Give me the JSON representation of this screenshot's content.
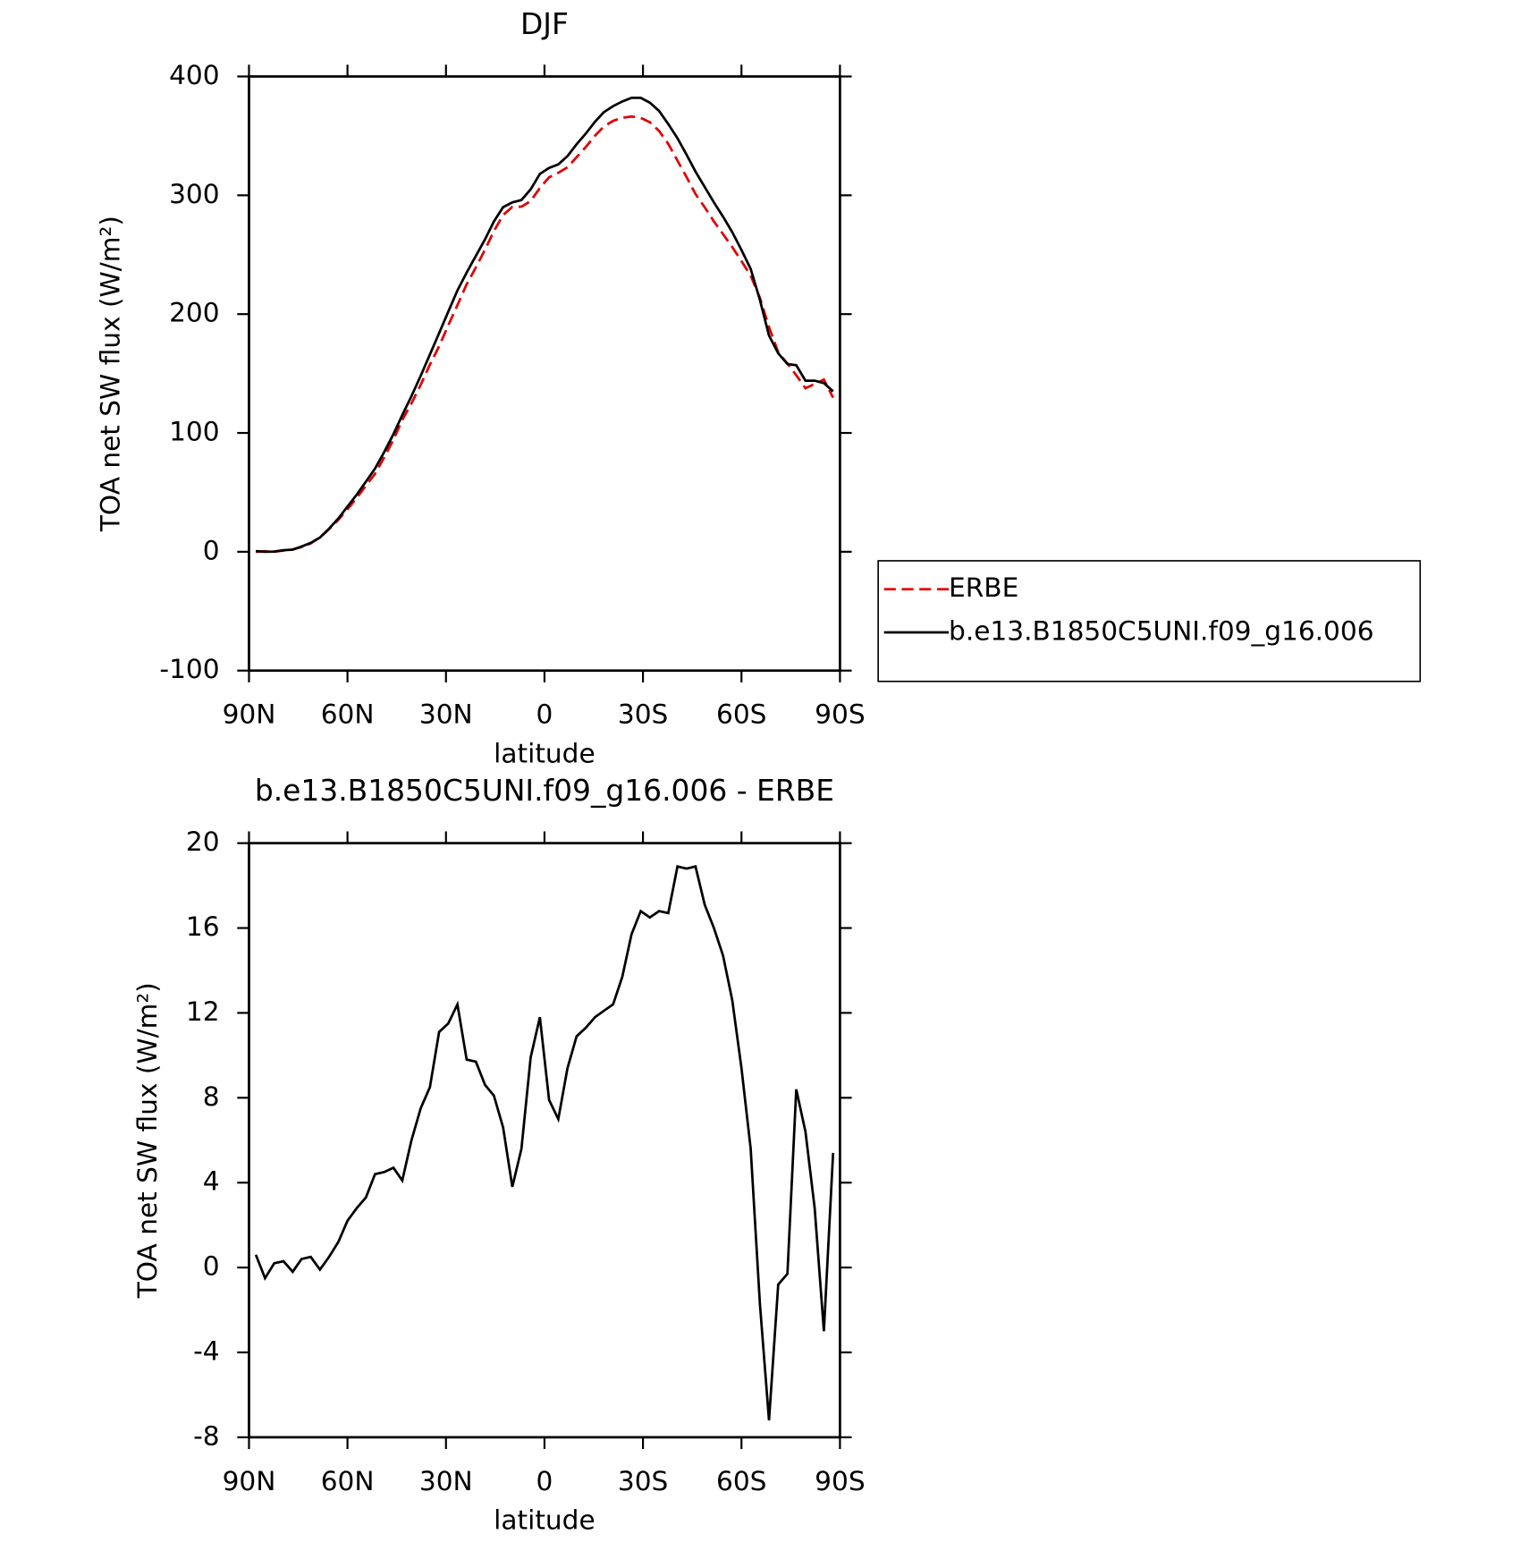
{
  "chart_data": [
    {
      "type": "line",
      "title": "DJF",
      "xlabel": "latitude",
      "ylabel": "TOA net SW flux (W/m²)",
      "x": [
        87.9,
        85.1,
        82.3,
        79.5,
        76.7,
        74.0,
        71.2,
        68.4,
        65.6,
        62.8,
        60.0,
        57.2,
        54.4,
        51.6,
        48.8,
        46.0,
        43.3,
        40.5,
        37.7,
        34.9,
        32.1,
        29.3,
        26.5,
        23.7,
        20.9,
        18.1,
        15.4,
        12.6,
        9.8,
        7.0,
        4.2,
        1.4,
        -1.4,
        -4.2,
        -7.0,
        -9.8,
        -12.6,
        -15.4,
        -18.1,
        -20.9,
        -23.7,
        -26.5,
        -29.3,
        -32.1,
        -34.9,
        -37.7,
        -40.5,
        -43.3,
        -46.0,
        -48.8,
        -51.6,
        -54.4,
        -57.2,
        -60.0,
        -62.8,
        -65.6,
        -68.4,
        -71.2,
        -74.0,
        -76.7,
        -79.5,
        -82.3,
        -85.1,
        -87.9
      ],
      "series": [
        {
          "name": "ERBE",
          "color": "#e00000",
          "dash": true,
          "values": [
            0,
            0.5,
            0,
            1,
            2,
            4,
            7,
            12.1,
            19,
            26.8,
            35.8,
            45.2,
            55.7,
            65.6,
            79.5,
            94.3,
            110.9,
            125,
            140.5,
            157.5,
            172.9,
            190.5,
            207.6,
            225.2,
            239.3,
            254.4,
            269.9,
            283.4,
            290.2,
            290.4,
            295.1,
            306.2,
            315.1,
            319,
            323.6,
            332.1,
            340.7,
            350.2,
            357.9,
            362.6,
            365.3,
            366.3,
            365.2,
            361.5,
            354.2,
            343.3,
            329.1,
            315.2,
            301.1,
            289.9,
            278,
            267.3,
            256.4,
            244.6,
            232.4,
            213.7,
            189.2,
            167.8,
            158.3,
            148.6,
            137.6,
            141.2,
            145,
            129.6
          ]
        },
        {
          "name": "b.e13.B1850C5UNI.f09_g16.006",
          "color": "#000000",
          "dash": false,
          "values": [
            0.6,
            0,
            0.2,
            1.3,
            1.8,
            4.4,
            7.5,
            12,
            19.5,
            28,
            38,
            48,
            59,
            70,
            84,
            99,
            115,
            131,
            148,
            166,
            184,
            202,
            220,
            235,
            249,
            263,
            278,
            290,
            294,
            296,
            305,
            318,
            323,
            326,
            333,
            343,
            352,
            362,
            370,
            375,
            379,
            382,
            382,
            378,
            371,
            360,
            348,
            334,
            320,
            307,
            294,
            282,
            269,
            254,
            238,
            212,
            182,
            167,
            158,
            157,
            144,
            144,
            142,
            135
          ]
        }
      ],
      "xlim": [
        90,
        -90
      ],
      "xticks": [
        {
          "value": 90,
          "label": "90N"
        },
        {
          "value": 60,
          "label": "60N"
        },
        {
          "value": 30,
          "label": "30N"
        },
        0,
        {
          "value": -30,
          "label": "30S"
        },
        {
          "value": -60,
          "label": "60S"
        },
        {
          "value": -90,
          "label": "90S"
        }
      ],
      "ylim": [
        -100,
        400
      ],
      "yticks": [
        -100,
        0,
        100,
        200,
        300,
        400
      ],
      "legend": "right"
    },
    {
      "type": "line",
      "title": "b.e13.B1850C5UNI.f09_g16.006 - ERBE",
      "xlabel": "latitude",
      "ylabel": "TOA net SW flux (W/m²)",
      "x": [
        87.9,
        85.1,
        82.3,
        79.5,
        76.7,
        74.0,
        71.2,
        68.4,
        65.6,
        62.8,
        60.0,
        57.2,
        54.4,
        51.6,
        48.8,
        46.0,
        43.3,
        40.5,
        37.7,
        34.9,
        32.1,
        29.3,
        26.5,
        23.7,
        20.9,
        18.1,
        15.4,
        12.6,
        9.8,
        7.0,
        4.2,
        1.4,
        -1.4,
        -4.2,
        -7.0,
        -9.8,
        -12.6,
        -15.4,
        -18.1,
        -20.9,
        -23.7,
        -26.5,
        -29.3,
        -32.1,
        -34.9,
        -37.7,
        -40.5,
        -43.3,
        -46.0,
        -48.8,
        -51.6,
        -54.4,
        -57.2,
        -60.0,
        -62.8,
        -65.6,
        -68.4,
        -71.2,
        -74.0,
        -76.7,
        -79.5,
        -82.3,
        -85.1,
        -87.9
      ],
      "color": "#000000",
      "values": [
        0.6,
        -0.5,
        0.2,
        0.3,
        -0.2,
        0.4,
        0.5,
        -0.1,
        0.5,
        1.2,
        2.2,
        2.8,
        3.3,
        4.4,
        4.5,
        4.7,
        4.1,
        6.0,
        7.5,
        8.5,
        11.1,
        11.5,
        12.4,
        9.8,
        9.7,
        8.6,
        8.1,
        6.6,
        3.8,
        5.6,
        9.9,
        11.8,
        7.9,
        7.0,
        9.4,
        10.9,
        11.3,
        11.8,
        12.1,
        12.4,
        13.7,
        15.7,
        16.8,
        16.5,
        16.8,
        16.7,
        18.9,
        18.8,
        18.9,
        17.1,
        16.0,
        14.7,
        12.6,
        9.4,
        5.6,
        -1.7,
        -7.2,
        -0.8,
        -0.3,
        8.4,
        6.4,
        2.8,
        -3.0,
        5.4
      ],
      "xlim": [
        90,
        -90
      ],
      "xticks": [
        {
          "value": 90,
          "label": "90N"
        },
        {
          "value": 60,
          "label": "60N"
        },
        {
          "value": 30,
          "label": "30N"
        },
        0,
        {
          "value": -30,
          "label": "30S"
        },
        {
          "value": -60,
          "label": "60S"
        },
        {
          "value": -90,
          "label": "90S"
        }
      ],
      "ylim": [
        -8,
        20
      ],
      "yticks": [
        -8,
        -4,
        0,
        4,
        8,
        12,
        16,
        20
      ]
    }
  ]
}
